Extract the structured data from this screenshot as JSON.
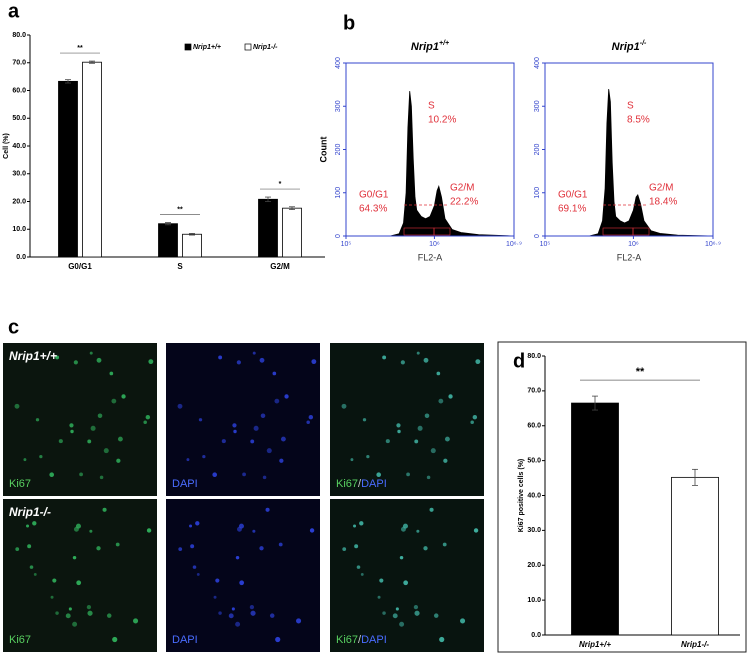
{
  "panels": [
    "a",
    "b",
    "c",
    "d"
  ],
  "chart_data": [
    {
      "type": "bar",
      "ylabel": "Cell (%)",
      "categories": [
        "G0/G1",
        "S",
        "G2/M"
      ],
      "series": [
        {
          "name": "Nrip1+/+",
          "color": "#000000",
          "values": [
            63.3,
            12.0,
            20.8
          ],
          "errors": [
            0.6,
            0.4,
            0.8
          ]
        },
        {
          "name": "Nrip1-/-",
          "color": "#ffffff",
          "values": [
            70.2,
            8.2,
            17.6
          ],
          "errors": [
            0.4,
            0.3,
            0.5
          ]
        }
      ],
      "significance": [
        "**",
        "**",
        "*"
      ],
      "ylim": [
        0,
        80
      ],
      "yticks": [
        {
          "value": 0,
          "label": "0.0"
        },
        {
          "value": 10,
          "label": "10.0"
        },
        {
          "value": 20,
          "label": "20.0"
        },
        {
          "value": 30,
          "label": "30.0"
        },
        {
          "value": 40,
          "label": "40.0"
        },
        {
          "value": 50,
          "label": "50.0"
        },
        {
          "value": 60,
          "label": "60.0"
        },
        {
          "value": 70,
          "label": "70.0"
        },
        {
          "value": 80,
          "label": "80.0"
        }
      ],
      "legend": "top-right"
    },
    {
      "type": "line",
      "title": "Nrip1",
      "title_sup": "+/+",
      "xlabel": "FL2-A",
      "ylabel": "Count",
      "color": "#000000",
      "axis_color": "#3344cc",
      "x": [
        5.5,
        5.6,
        5.65,
        5.68,
        5.7,
        5.72,
        5.74,
        5.76,
        5.78,
        5.8,
        5.85,
        5.9,
        5.95,
        6.0,
        6.03,
        6.05,
        6.08,
        6.12,
        6.2,
        6.3,
        6.5,
        6.9
      ],
      "values": [
        0,
        5,
        30,
        100,
        250,
        335,
        300,
        180,
        90,
        60,
        45,
        40,
        45,
        70,
        105,
        115,
        90,
        40,
        15,
        8,
        3,
        0
      ],
      "gates": {
        "names": [
          "G0/G1",
          "S",
          "G2/M"
        ],
        "values": [
          64.3,
          10.2,
          22.2
        ],
        "value_labels": [
          "64.3%",
          "10.2%",
          "22.2%"
        ]
      },
      "xlim": [
        5,
        6.9
      ],
      "xticks": [
        {
          "value": 5,
          "label": "10⁵"
        },
        {
          "value": 6,
          "label": "10⁶"
        },
        {
          "value": 6.9,
          "label": "10⁶·⁹"
        }
      ],
      "ylim": [
        0,
        400
      ],
      "yticks": [
        0,
        100,
        200,
        300,
        400
      ]
    },
    {
      "type": "line",
      "title": "Nrip1",
      "title_sup": "-/-",
      "xlabel": "FL2-A",
      "ylabel": "Count",
      "color": "#000000",
      "axis_color": "#3344cc",
      "x": [
        5.5,
        5.6,
        5.65,
        5.68,
        5.7,
        5.72,
        5.74,
        5.76,
        5.78,
        5.8,
        5.85,
        5.9,
        5.95,
        6.0,
        6.03,
        6.05,
        6.08,
        6.12,
        6.2,
        6.3,
        6.5,
        6.9
      ],
      "values": [
        0,
        5,
        35,
        110,
        260,
        340,
        310,
        170,
        80,
        45,
        35,
        30,
        35,
        60,
        90,
        95,
        75,
        35,
        12,
        6,
        2,
        0
      ],
      "gates": {
        "names": [
          "G0/G1",
          "S",
          "G2/M"
        ],
        "values": [
          69.1,
          8.5,
          18.4
        ],
        "value_labels": [
          "69.1%",
          "8.5%",
          "18.4%"
        ]
      },
      "xlim": [
        5,
        6.9
      ],
      "xticks": [
        {
          "value": 5,
          "label": "10⁵"
        },
        {
          "value": 6,
          "label": "10⁶"
        },
        {
          "value": 6.9,
          "label": "10⁶·⁹"
        }
      ],
      "ylim": [
        0,
        400
      ],
      "yticks": [
        0,
        100,
        200,
        300,
        400
      ]
    },
    {
      "type": "bar",
      "ylabel": "Ki67 positive cells (%)",
      "categories": [
        "Nrip1+/+",
        "Nrip1-/-"
      ],
      "series": [
        {
          "colors": [
            "#000000",
            "#ffffff"
          ],
          "values": [
            66.5,
            45.2
          ],
          "errors": [
            2.0,
            2.3
          ]
        }
      ],
      "significance": [
        "**"
      ],
      "ylim": [
        0,
        80
      ],
      "yticks": [
        {
          "value": 0,
          "label": "0.0"
        },
        {
          "value": 10,
          "label": "10.0"
        },
        {
          "value": 20,
          "label": "20.0"
        },
        {
          "value": 30,
          "label": "30.0"
        },
        {
          "value": 40,
          "label": "40.0"
        },
        {
          "value": 50,
          "label": "50.0"
        },
        {
          "value": 60,
          "label": "60.0"
        },
        {
          "value": 70,
          "label": "70.0"
        },
        {
          "value": 80,
          "label": "80.0"
        }
      ]
    }
  ],
  "micrographs": {
    "rows": [
      "Nrip1+/+",
      "Nrip1-/-"
    ],
    "channels": [
      "Ki67",
      "DAPI"
    ],
    "separator": "/"
  }
}
